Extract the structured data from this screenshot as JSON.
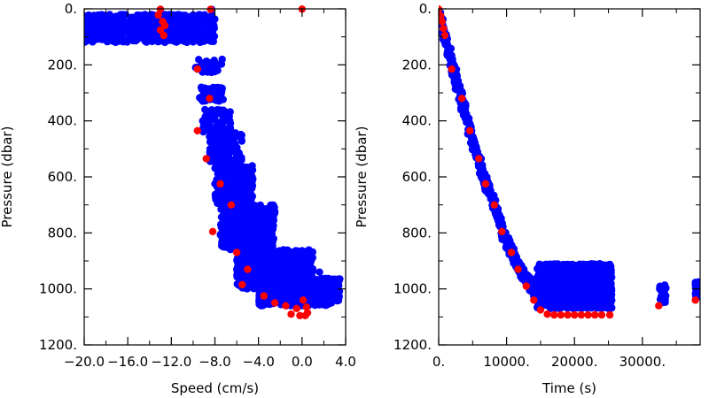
{
  "colors": {
    "profile_points": "#0000ff",
    "highlight_points": "#ff0000",
    "axes": "#000000"
  },
  "chart_data": [
    {
      "type": "scatter",
      "xlabel": "Speed (cm/s)",
      "ylabel": "Pressure (dbar)",
      "xlim": [
        -20,
        4
      ],
      "ylim": [
        1200,
        0
      ],
      "y_inverted": true,
      "grid": false,
      "x_ticks": [
        -20,
        -16,
        -12,
        -8,
        -4,
        0,
        4
      ],
      "x_tick_labels": [
        "−20.0",
        "−16.0",
        "−12.0",
        "−8.0",
        "−4.0",
        "0.0",
        "4.0"
      ],
      "y_ticks": [
        0,
        200,
        400,
        600,
        800,
        1000,
        1200
      ],
      "y_tick_labels": [
        "0.",
        "200.",
        "400.",
        "600.",
        "800.",
        "1000.",
        "1200."
      ],
      "blue_clusters": [
        {
          "x": [
            -20.5,
            -8.0
          ],
          "y": [
            20,
            120
          ],
          "n": 700
        },
        {
          "x": [
            -9.8,
            -8.0
          ],
          "y": [
            200,
            230
          ],
          "n": 30
        },
        {
          "x": [
            -9.5,
            -7.3
          ],
          "y": [
            180,
            230
          ],
          "n": 25
        },
        {
          "x": [
            -9.5,
            -7.2
          ],
          "y": [
            280,
            330
          ],
          "n": 50
        },
        {
          "x": [
            -9.2,
            -6.5
          ],
          "y": [
            360,
            440
          ],
          "n": 70
        },
        {
          "x": [
            -8.5,
            -5.5
          ],
          "y": [
            440,
            560
          ],
          "n": 150
        },
        {
          "x": [
            -8.0,
            -4.5
          ],
          "y": [
            560,
            700
          ],
          "n": 230
        },
        {
          "x": [
            -7.5,
            -2.5
          ],
          "y": [
            700,
            860
          ],
          "n": 420
        },
        {
          "x": [
            -6.0,
            1.0
          ],
          "y": [
            860,
            1000
          ],
          "n": 750
        },
        {
          "x": [
            -4.0,
            3.5
          ],
          "y": [
            960,
            1060
          ],
          "n": 420
        }
      ],
      "blue_extra": [
        {
          "x": -13.0,
          "y": 2
        },
        {
          "x": -8.3,
          "y": 2
        },
        {
          "x": -20.4,
          "y": 30
        },
        {
          "x": 2.3,
          "y": 970
        },
        {
          "x": 3.0,
          "y": 995
        },
        {
          "x": 1.6,
          "y": 940
        }
      ],
      "red_points": [
        {
          "x": 0.0,
          "y": 1
        },
        {
          "x": -8.4,
          "y": 2
        },
        {
          "x": -13.0,
          "y": 2
        },
        {
          "x": -13.2,
          "y": 22
        },
        {
          "x": -12.8,
          "y": 45
        },
        {
          "x": -12.6,
          "y": 60
        },
        {
          "x": -13.0,
          "y": 75
        },
        {
          "x": -12.7,
          "y": 95
        },
        {
          "x": -9.6,
          "y": 215
        },
        {
          "x": -8.5,
          "y": 320
        },
        {
          "x": -9.6,
          "y": 435
        },
        {
          "x": -8.8,
          "y": 535
        },
        {
          "x": -7.5,
          "y": 625
        },
        {
          "x": -6.5,
          "y": 700
        },
        {
          "x": -8.2,
          "y": 795
        },
        {
          "x": -6.0,
          "y": 870
        },
        {
          "x": -5.0,
          "y": 930
        },
        {
          "x": -5.5,
          "y": 985
        },
        {
          "x": -3.5,
          "y": 1025
        },
        {
          "x": -1.5,
          "y": 1060
        },
        {
          "x": -1.0,
          "y": 1090
        },
        {
          "x": -0.2,
          "y": 1095
        },
        {
          "x": 0.3,
          "y": 1095
        },
        {
          "x": 0.4,
          "y": 1065
        },
        {
          "x": 0.1,
          "y": 1040
        },
        {
          "x": 0.5,
          "y": 1085
        },
        {
          "x": -2.5,
          "y": 1050
        },
        {
          "x": -0.5,
          "y": 1070
        }
      ]
    },
    {
      "type": "scatter",
      "xlabel": "Time (s)",
      "ylabel": "Pressure (dbar)",
      "xlim": [
        0,
        38500
      ],
      "ylim": [
        1200,
        0
      ],
      "y_inverted": true,
      "grid": false,
      "x_ticks": [
        0,
        10000,
        20000,
        30000
      ],
      "x_tick_labels": [
        "0.",
        "10000.",
        "20000.",
        "30000."
      ],
      "y_ticks": [
        0,
        200,
        400,
        600,
        800,
        1000,
        1200
      ],
      "y_tick_labels": [
        "0.",
        "200.",
        "400.",
        "600.",
        "800.",
        "1000.",
        "1200."
      ],
      "descent_blue": [
        [
          0,
          0
        ],
        [
          1200,
          110
        ],
        [
          2300,
          215
        ],
        [
          3500,
          330
        ],
        [
          4800,
          440
        ],
        [
          6000,
          540
        ],
        [
          7200,
          625
        ],
        [
          8400,
          700
        ],
        [
          9500,
          790
        ],
        [
          10800,
          860
        ],
        [
          12000,
          920
        ],
        [
          13200,
          960
        ],
        [
          14300,
          1000
        ],
        [
          15500,
          1020
        ]
      ],
      "bottom_block": {
        "x": [
          14500,
          25500
        ],
        "y": [
          910,
          1070
        ],
        "n": 900
      },
      "bottom_extras": [
        {
          "x": [
            32500,
            33500
          ],
          "y": [
            985,
            1050
          ],
          "n": 25
        },
        {
          "x": [
            37800,
            38500
          ],
          "y": [
            975,
            1035
          ],
          "n": 25
        }
      ],
      "red_points": [
        [
          0,
          1
        ],
        [
          300,
          25
        ],
        [
          500,
          45
        ],
        [
          700,
          70
        ],
        [
          900,
          95
        ],
        [
          1900,
          215
        ],
        [
          3400,
          320
        ],
        [
          4600,
          435
        ],
        [
          5900,
          535
        ],
        [
          6900,
          625
        ],
        [
          8200,
          700
        ],
        [
          9300,
          795
        ],
        [
          10700,
          870
        ],
        [
          11700,
          930
        ],
        [
          12900,
          990
        ],
        [
          14000,
          1040
        ],
        [
          15000,
          1075
        ],
        [
          16000,
          1090
        ],
        [
          17000,
          1093
        ],
        [
          18000,
          1093
        ],
        [
          19000,
          1093
        ],
        [
          20000,
          1093
        ],
        [
          21000,
          1093
        ],
        [
          22000,
          1093
        ],
        [
          23000,
          1093
        ],
        [
          24000,
          1093
        ],
        [
          25200,
          1093
        ],
        [
          32400,
          1060
        ],
        [
          37800,
          1040
        ]
      ]
    }
  ]
}
